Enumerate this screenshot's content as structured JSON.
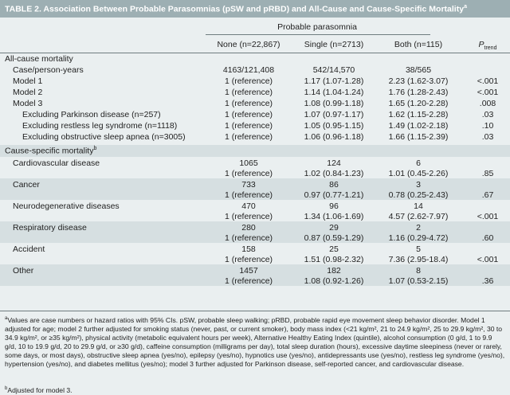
{
  "title": {
    "text": "TABLE 2. Association Between Probable Parasomnias (pSW and pRBD) and All-Cause and Cause-Specific Mortality",
    "sup": "a"
  },
  "header": {
    "group": "Probable parasomnia",
    "cols": [
      "None (n=22,867)",
      "Single (n=2713)",
      "Both (n=115)"
    ],
    "ptrend": "P",
    "ptrend_sub": "trend"
  },
  "rows": [
    {
      "label": "All-cause mortality",
      "indent": 0,
      "shade": false,
      "v": [
        "",
        "",
        "",
        ""
      ]
    },
    {
      "label": "Case/person-years",
      "indent": 1,
      "shade": false,
      "v": [
        "4163/121,408",
        "542/14,570",
        "38/565",
        ""
      ]
    },
    {
      "label": "Model 1",
      "indent": 1,
      "shade": false,
      "v": [
        "1 (reference)",
        "1.17 (1.07-1.28)",
        "2.23 (1.62-3.07)",
        "<.001"
      ]
    },
    {
      "label": "Model 2",
      "indent": 1,
      "shade": false,
      "v": [
        "1 (reference)",
        "1.14 (1.04-1.24)",
        "1.76 (1.28-2.43)",
        "<.001"
      ]
    },
    {
      "label": "Model 3",
      "indent": 1,
      "shade": false,
      "v": [
        "1 (reference)",
        "1.08 (0.99-1.18)",
        "1.65 (1.20-2.28)",
        ".008"
      ]
    },
    {
      "label": "Excluding Parkinson disease (n=257)",
      "indent": 2,
      "shade": false,
      "v": [
        "1 (reference)",
        "1.07 (0.97-1.17)",
        "1.62 (1.15-2.28)",
        ".03"
      ]
    },
    {
      "label": "Excluding restless leg syndrome (n=1118)",
      "indent": 2,
      "shade": false,
      "v": [
        "1 (reference)",
        "1.05 (0.95-1.15)",
        "1.49 (1.02-2.18)",
        ".10"
      ]
    },
    {
      "label": "Excluding obstructive sleep apnea (n=3005)",
      "indent": 2,
      "shade": false,
      "v": [
        "1 (reference)",
        "1.06 (0.96-1.18)",
        "1.66 (1.15-2.39)",
        ".03"
      ]
    }
  ],
  "cause_section": {
    "label": "Cause-specific mortality",
    "sup": "b"
  },
  "causes": [
    {
      "name": "Cardiovascular disease",
      "cases": [
        "1065",
        "124",
        "6"
      ],
      "hr": [
        "1 (reference)",
        "1.02 (0.84-1.23)",
        "1.01 (0.45-2.26)",
        ".85"
      ]
    },
    {
      "name": "Cancer",
      "cases": [
        "733",
        "86",
        "3"
      ],
      "hr": [
        "1 (reference)",
        "0.97 (0.77-1.21)",
        "0.78 (0.25-2.43)",
        ".67"
      ]
    },
    {
      "name": "Neurodegenerative diseases",
      "cases": [
        "470",
        "96",
        "14"
      ],
      "hr": [
        "1 (reference)",
        "1.34 (1.06-1.69)",
        "4.57 (2.62-7.97)",
        "<.001"
      ]
    },
    {
      "name": "Respiratory disease",
      "cases": [
        "280",
        "29",
        "2"
      ],
      "hr": [
        "1 (reference)",
        "0.87 (0.59-1.29)",
        "1.16 (0.29-4.72)",
        ".60"
      ]
    },
    {
      "name": "Accident",
      "cases": [
        "158",
        "25",
        "5"
      ],
      "hr": [
        "1 (reference)",
        "1.51 (0.98-2.32)",
        "7.36 (2.95-18.4)",
        "<.001"
      ]
    },
    {
      "name": "Other",
      "cases": [
        "1457",
        "182",
        "8"
      ],
      "hr": [
        "1 (reference)",
        "1.08 (0.92-1.26)",
        "1.07 (0.53-2.15)",
        ".36"
      ]
    }
  ],
  "footnotes": {
    "a_mark": "a",
    "a_text": "Values are case numbers or hazard ratios with 95% CIs. pSW, probable sleep walking; pRBD, probable rapid eye movement sleep behavior disorder. Model 1 adjusted for age; model 2 further adjusted for smoking status (never, past, or current smoker), body mass index (<21 kg/m², 21 to 24.9 kg/m², 25 to 29.9 kg/m², 30 to 34.9 kg/m², or ≥35 kg/m²), physical activity (metabolic equivalent hours per week), Alternative Healthy Eating Index (quintile), alcohol consumption (0 g/d, 1 to 9.9 g/d, 10 to 19.9 g/d, 20 to 29.9 g/d, or ≥30 g/d), caffeine consumption (milligrams per day), total sleep duration (hours), excessive daytime sleepiness (never or rarely, some days, or most days), obstructive sleep apnea (yes/no), epilepsy (yes/no), hypnotics use (yes/no), antidepressants use (yes/no), restless leg syndrome (yes/no), hypertension (yes/no), and diabetes mellitus (yes/no); model 3 further adjusted for Parkinson disease, self-reported cancer, and cardiovascular disease.",
    "b_mark": "b",
    "b_text": "Adjusted for model 3."
  },
  "colors": {
    "title_bg": "#9dafb3",
    "body_bg": "#eaeff0",
    "shade_bg": "#d6dfe1"
  }
}
